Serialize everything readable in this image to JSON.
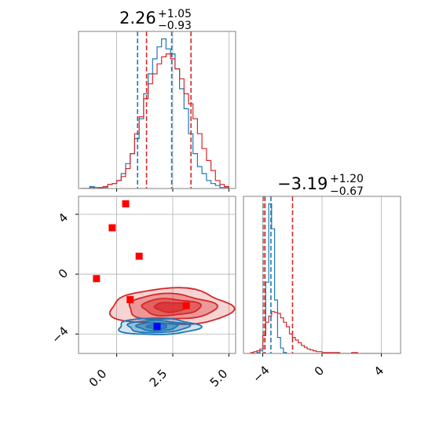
{
  "chart_data": [
    {
      "panel": "top-left",
      "type": "histogram",
      "title": {
        "value": "2.26",
        "upper": "+1.05",
        "lower": "−0.93"
      },
      "xlim": [
        -1.7,
        5.3
      ],
      "series": [
        {
          "name": "",
          "color": "#1f77b4",
          "bin_edges": [
            -1.6,
            -1.4,
            -1.2,
            -1.0,
            -0.8,
            -0.6,
            -0.4,
            -0.2,
            0.0,
            0.2,
            0.4,
            0.6,
            0.8,
            1.0,
            1.2,
            1.4,
            1.6,
            1.8,
            2.0,
            2.2,
            2.4,
            2.6,
            2.8,
            3.0,
            3.2,
            3.4,
            3.6,
            3.8,
            4.0,
            4.2,
            4.4,
            4.6,
            4.8,
            5.0
          ],
          "counts": [
            0,
            0,
            2,
            1,
            1,
            1,
            4,
            5,
            8,
            15,
            25,
            35,
            50,
            70,
            95,
            115,
            130,
            142,
            150,
            140,
            135,
            120,
            100,
            80,
            55,
            35,
            22,
            15,
            8,
            5,
            3,
            1,
            1
          ]
        },
        {
          "name": "",
          "color": "#d62728",
          "bin_edges": [
            -1.6,
            -1.4,
            -1.2,
            -1.0,
            -0.8,
            -0.6,
            -0.4,
            -0.2,
            0.0,
            0.2,
            0.4,
            0.6,
            0.8,
            1.0,
            1.2,
            1.4,
            1.6,
            1.8,
            2.0,
            2.2,
            2.4,
            2.6,
            2.8,
            3.0,
            3.2,
            3.4,
            3.6,
            3.8,
            4.0,
            4.2,
            4.4,
            4.6,
            4.8,
            5.0
          ],
          "counts": [
            0,
            0,
            1,
            0,
            1,
            2,
            4,
            5,
            8,
            12,
            20,
            35,
            55,
            72,
            90,
            105,
            115,
            125,
            132,
            135,
            130,
            120,
            110,
            95,
            85,
            70,
            55,
            40,
            28,
            18,
            8,
            4,
            2
          ]
        }
      ],
      "quantile_lines": [
        {
          "color": "#1f77b4",
          "x": [
            0.93,
            2.45
          ]
        },
        {
          "color": "#d62728",
          "x": [
            1.33,
            3.31
          ]
        }
      ],
      "xticks": [
        0.0,
        2.5,
        5.0
      ]
    },
    {
      "panel": "bottom-left",
      "type": "scatter",
      "xlim": [
        -1.7,
        5.3
      ],
      "ylim": [
        -5.3,
        5.2
      ],
      "xtick_labels": [
        "0.0",
        "2.5",
        "5.0"
      ],
      "ytick_labels": [
        "4",
        "0",
        "−4"
      ],
      "xticks": [
        0.0,
        2.5,
        5.0
      ],
      "yticks": [
        4,
        0,
        -4
      ],
      "contours": [
        {
          "color": "#d62728",
          "center": [
            2.4,
            -2.2
          ],
          "levels": [
            [
              2.7,
              1.2
            ],
            [
              1.95,
              0.85
            ],
            [
              1.3,
              0.55
            ],
            [
              0.7,
              0.32
            ]
          ]
        },
        {
          "color": "#1f77b4",
          "center": [
            1.8,
            -3.5
          ],
          "levels": [
            [
              1.8,
              0.55
            ],
            [
              1.35,
              0.4
            ],
            [
              0.9,
              0.27
            ],
            [
              0.45,
              0.15
            ]
          ]
        }
      ],
      "markers": [
        {
          "color": "#ff0000",
          "points": [
            [
              0.4,
              4.7
            ],
            [
              -0.2,
              3.1
            ],
            [
              1.0,
              1.2
            ],
            [
              -0.9,
              -0.3
            ],
            [
              0.6,
              -1.7
            ],
            [
              3.1,
              -2.1
            ]
          ]
        },
        {
          "color": "#0000ff",
          "points": [
            [
              1.8,
              -3.5
            ]
          ]
        }
      ]
    },
    {
      "panel": "bottom-right",
      "type": "histogram",
      "title": {
        "value": "−3.19",
        "upper": "+1.20",
        "lower": "−0.67"
      },
      "xlim": [
        -5.3,
        5.3
      ],
      "xtick_labels": [
        "−4",
        "0",
        "4"
      ],
      "xticks": [
        -4,
        0,
        4
      ],
      "series": [
        {
          "name": "",
          "color": "#1f77b4",
          "bin_edges": [
            -4.6,
            -4.4,
            -4.2,
            -4.0,
            -3.8,
            -3.6,
            -3.4,
            -3.2,
            -3.0,
            -2.8,
            -2.6,
            -2.4
          ],
          "counts": [
            0,
            1,
            3,
            20,
            80,
            168,
            140,
            60,
            18,
            6,
            1
          ]
        },
        {
          "name": "",
          "color": "#d62728",
          "bin_edges": [
            -5.0,
            -4.8,
            -4.6,
            -4.4,
            -4.2,
            -4.0,
            -3.8,
            -3.6,
            -3.4,
            -3.2,
            -3.0,
            -2.8,
            -2.6,
            -2.4,
            -2.2,
            -2.0,
            -1.8,
            -1.6,
            -1.4,
            -1.2,
            -1.0,
            -0.8,
            -0.6,
            -0.4,
            -0.2,
            0.0,
            0.4,
            0.8,
            1.2,
            1.6,
            2.0,
            2.4,
            2.8,
            3.2,
            3.6,
            4.0
          ],
          "counts": [
            0,
            1,
            2,
            3,
            5,
            20,
            35,
            42,
            47,
            46,
            45,
            40,
            35,
            30,
            22,
            18,
            15,
            12,
            9,
            7,
            5,
            4,
            3,
            2,
            2,
            1,
            1,
            1,
            0,
            0,
            1,
            0,
            0,
            0,
            0
          ]
        }
      ],
      "quantile_lines": [
        {
          "color": "#1f77b4",
          "x": [
            -3.85,
            -3.45
          ]
        },
        {
          "color": "#d62728",
          "x": [
            -3.86,
            -1.99
          ]
        },
        {
          "color": "#7f7f7f",
          "x": [
            -3.97
          ]
        }
      ]
    }
  ],
  "colors": {
    "blue": "#1f77b4",
    "red": "#d62728",
    "grid": "#b0b0b0",
    "marker_red": "#ff0000",
    "marker_blue": "#0000ff"
  }
}
